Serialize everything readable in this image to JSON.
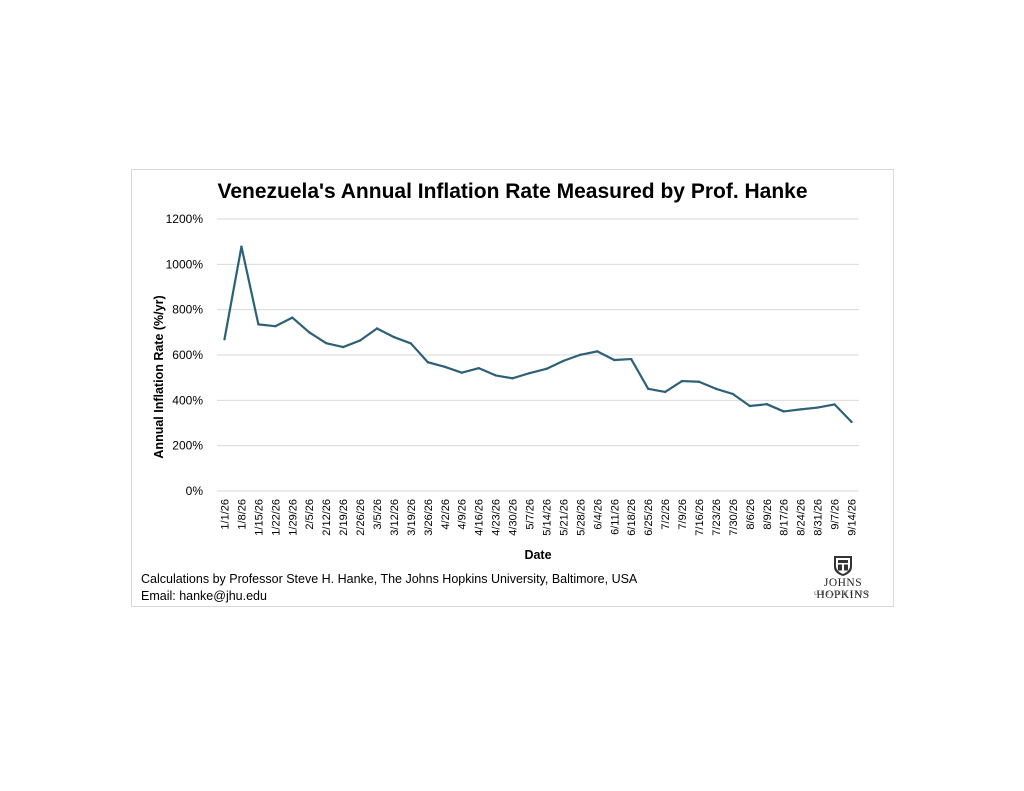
{
  "footer": {
    "line1": "Calculations by Professor Steve H. Hanke, The Johns Hopkins University, Baltimore, USA",
    "line2": "Email: hanke@jhu.edu"
  },
  "logo": {
    "name": "JOHNS HOPKINS",
    "subtitle": "UNIVERSITY",
    "icon": "jhu-shield-icon"
  },
  "colors": {
    "line": "#2c6178",
    "grid": "#d9d9d9",
    "text": "#000000"
  },
  "chart_data": {
    "type": "line",
    "title": "Venezuela's Annual Inflation Rate Measured by Prof. Hanke",
    "xlabel": "Date",
    "ylabel": "Annual Inflation Rate (%/yr)",
    "ylim": [
      0,
      1200
    ],
    "yticks": [
      "0%",
      "200%",
      "400%",
      "600%",
      "800%",
      "1000%",
      "1200%"
    ],
    "grid": true,
    "legend": "none",
    "x": [
      "1/1/26",
      "1/8/26",
      "1/15/26",
      "1/22/26",
      "1/29/26",
      "2/5/26",
      "2/12/26",
      "2/19/26",
      "2/26/26",
      "3/5/26",
      "3/12/26",
      "3/19/26",
      "3/26/26",
      "4/2/26",
      "4/9/26",
      "4/16/26",
      "4/23/26",
      "4/30/26",
      "5/7/26",
      "5/14/26",
      "5/21/26",
      "5/28/26",
      "6/4/26",
      "6/11/26",
      "6/18/26",
      "6/25/26",
      "7/2/26",
      "7/9/26",
      "7/16/26",
      "7/23/26",
      "7/30/26",
      "8/6/26",
      "8/9/26",
      "8/17/26",
      "8/24/26",
      "8/31/26",
      "9/7/26",
      "9/14/26"
    ],
    "series": [
      {
        "values": [
          670,
          1078,
          735,
          727,
          765,
          700,
          652,
          635,
          664,
          717,
          679,
          651,
          568,
          548,
          522,
          542,
          510,
          497,
          520,
          539,
          574,
          601,
          616,
          578,
          582,
          451,
          437,
          485,
          482,
          451,
          428,
          375,
          383,
          351,
          360,
          368,
          382,
          305
        ]
      }
    ]
  }
}
